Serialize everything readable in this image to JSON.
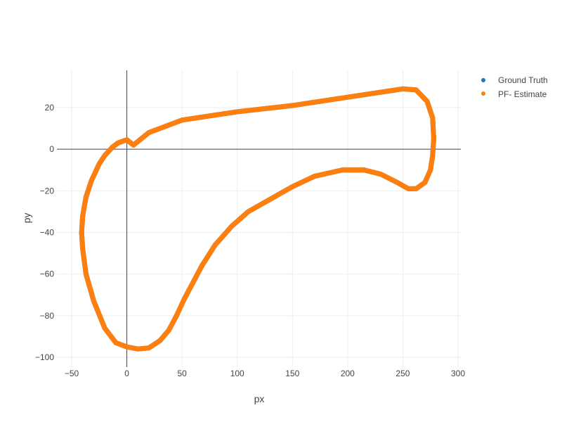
{
  "chart_data": {
    "type": "scatter",
    "title": "",
    "xlabel": "px",
    "ylabel": "py",
    "xlim": [
      -50,
      300
    ],
    "ylim": [
      -100,
      30
    ],
    "x_ticks": [
      -50,
      0,
      50,
      100,
      150,
      200,
      250,
      300
    ],
    "y_ticks": [
      -100,
      -80,
      -60,
      -40,
      -20,
      0,
      20
    ],
    "x_tick_labels": [
      "−50",
      "0",
      "50",
      "100",
      "150",
      "200",
      "250",
      "300"
    ],
    "y_tick_labels": [
      "−100",
      "−80",
      "−60",
      "−40",
      "−20",
      "0",
      "20"
    ],
    "grid": true,
    "zero_lines": true,
    "legend_position": "top-right",
    "series": [
      {
        "name": "Ground Truth",
        "color": "#1f77b4",
        "x": [
          6,
          20,
          50,
          100,
          150,
          200,
          250,
          262,
          272,
          277,
          278,
          277,
          275,
          270,
          262,
          255,
          245,
          230,
          215,
          195,
          170,
          150,
          130,
          110,
          95,
          80,
          68,
          60,
          52,
          45,
          38,
          30,
          20,
          10,
          0,
          -10,
          -20,
          -30,
          -37,
          -40,
          -41,
          -40,
          -37,
          -32,
          -25,
          -20,
          -13,
          -8,
          -3,
          0,
          6
        ],
        "y": [
          2,
          8,
          14,
          18,
          21,
          25,
          29,
          28.5,
          23,
          15,
          5,
          -3,
          -10,
          -16,
          -19,
          -19,
          -16,
          -12,
          -10,
          -10,
          -13,
          -18,
          -24,
          -30,
          -37,
          -46,
          -56,
          -64,
          -72,
          -80,
          -87,
          -92,
          -95.5,
          -96,
          -95,
          -93,
          -86,
          -73,
          -60,
          -48,
          -40,
          -32,
          -23,
          -15,
          -7,
          -3,
          1,
          3,
          4,
          4.5,
          2
        ]
      },
      {
        "name": "PF- Estimate",
        "color": "#ff7f0e",
        "x": [
          6,
          20,
          50,
          100,
          150,
          200,
          250,
          262,
          272,
          277,
          278,
          277,
          275,
          270,
          262,
          255,
          245,
          230,
          215,
          195,
          170,
          150,
          130,
          110,
          95,
          80,
          68,
          60,
          52,
          45,
          38,
          30,
          20,
          10,
          0,
          -10,
          -20,
          -30,
          -37,
          -40,
          -41,
          -40,
          -37,
          -32,
          -25,
          -20,
          -13,
          -8,
          -3,
          0,
          6
        ],
        "y": [
          2,
          8,
          14,
          18,
          21,
          25,
          29,
          28.5,
          23,
          15,
          5,
          -3,
          -10,
          -16,
          -19,
          -19,
          -16,
          -12,
          -10,
          -10,
          -13,
          -18,
          -24,
          -30,
          -37,
          -46,
          -56,
          -64,
          -72,
          -80,
          -87,
          -92,
          -95.5,
          -96,
          -95,
          -93,
          -86,
          -73,
          -60,
          -48,
          -40,
          -32,
          -23,
          -15,
          -7,
          -3,
          1,
          3,
          4,
          4.5,
          2
        ]
      }
    ]
  }
}
